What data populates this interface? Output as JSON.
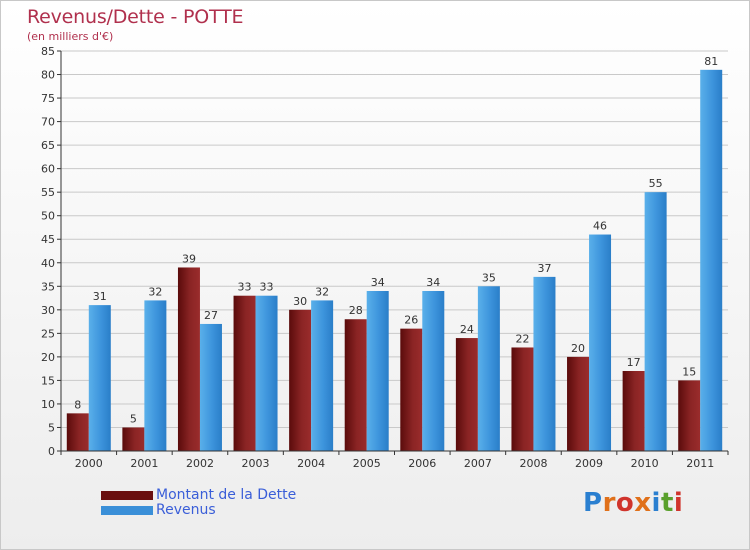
{
  "chart_data": {
    "type": "bar",
    "title": "Revenus/Dette - POTTE",
    "subtitle": "(en milliers d'€)",
    "categories": [
      "2000",
      "2001",
      "2002",
      "2003",
      "2004",
      "2005",
      "2006",
      "2007",
      "2008",
      "2009",
      "2010",
      "2011"
    ],
    "series": [
      {
        "name": "Montant de la Dette",
        "color": "#7a1a1a",
        "values": [
          8,
          5,
          39,
          33,
          30,
          28,
          26,
          24,
          22,
          20,
          17,
          15
        ]
      },
      {
        "name": "Revenus",
        "color": "#3a8fd8",
        "values": [
          31,
          32,
          27,
          33,
          32,
          34,
          34,
          35,
          37,
          46,
          55,
          81
        ]
      }
    ],
    "ylim": [
      0,
      85
    ],
    "yticks": [
      0,
      5,
      10,
      15,
      20,
      25,
      30,
      35,
      40,
      45,
      50,
      55,
      60,
      65,
      70,
      75,
      80,
      85
    ],
    "grid": true,
    "legend": "bottom-left"
  },
  "branding": {
    "logo_text": "Proxiti",
    "logo_colors": [
      "#2a7fd0",
      "#e0701a",
      "#d0342c",
      "#e0701a",
      "#2a7fd0",
      "#5aa02c",
      "#d0342c"
    ]
  }
}
